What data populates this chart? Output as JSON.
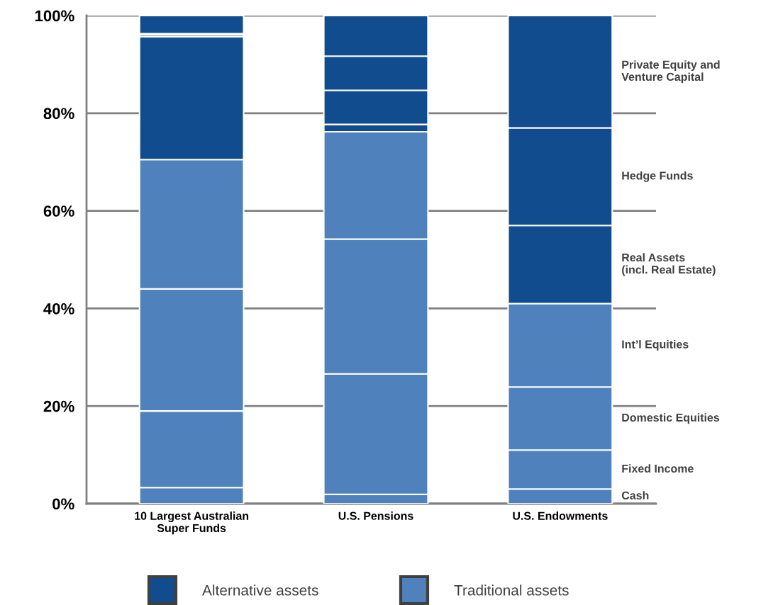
{
  "chart_data": {
    "type": "bar",
    "stacked": true,
    "categories": [
      "10 Largest Australian\nSuper Funds",
      "U.S. Pensions",
      "U.S. Endowments"
    ],
    "series": [
      {
        "name": "Cash",
        "color": "#4f81bd",
        "values": [
          3.3,
          1.9,
          3.0
        ]
      },
      {
        "name": "Fixed Income",
        "color": "#4f81bd",
        "values": [
          15.7,
          24.7,
          8.0
        ]
      },
      {
        "name": "Domestic Equities",
        "color": "#4f81bd",
        "values": [
          25.0,
          27.6,
          12.9
        ]
      },
      {
        "name": "Int’l Equities",
        "color": "#4f81bd",
        "values": [
          26.5,
          22.0,
          17.1
        ]
      },
      {
        "name": "Real Assets\n(incl. Real Estate)",
        "color": "#114c8e",
        "values": [
          25.2,
          1.5,
          16.0
        ]
      },
      {
        "name": "Hedge Funds",
        "color": "#114c8e",
        "values": [
          0.4,
          7.0,
          20.0
        ]
      },
      {
        "name": "Private Equity and\nVenture Capital",
        "color": "#114c8e",
        "values": [
          0.2,
          7.0,
          23.0
        ]
      },
      {
        "color": "#114c8e",
        "values": [
          3.7,
          8.3,
          null
        ]
      }
    ],
    "ylim": [
      0,
      100
    ],
    "yticks": [
      {
        "value": 0,
        "label": "0%"
      },
      {
        "value": 20,
        "label": "20%"
      },
      {
        "value": 40,
        "label": "40%"
      },
      {
        "value": 60,
        "label": "60%"
      },
      {
        "value": 80,
        "label": "80%"
      },
      {
        "value": 100,
        "label": "100%"
      }
    ],
    "grid": "y",
    "annotations": [
      "Alternative assets",
      "Traditional assets"
    ]
  }
}
